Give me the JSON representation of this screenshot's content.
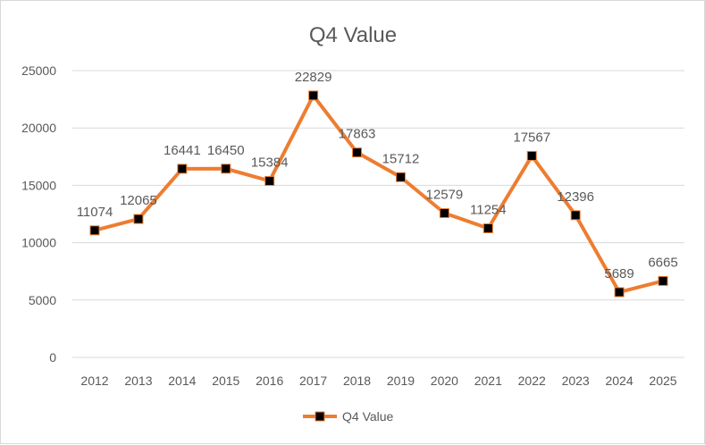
{
  "chart_data": {
    "type": "line",
    "title": "Q4 Value",
    "categories": [
      "2012",
      "2013",
      "2014",
      "2015",
      "2016",
      "2017",
      "2018",
      "2019",
      "2020",
      "2021",
      "2022",
      "2023",
      "2024",
      "2025"
    ],
    "series": [
      {
        "name": "Q4 Value",
        "values": [
          11074,
          12065,
          16441,
          16450,
          15384,
          22829,
          17863,
          15712,
          12579,
          11254,
          17567,
          12396,
          5689,
          6665
        ]
      }
    ],
    "ylim": [
      0,
      25000
    ],
    "yticks": [
      0,
      5000,
      10000,
      15000,
      20000,
      25000
    ],
    "grid": true,
    "legend": "bottom",
    "data_labels": true,
    "colors": {
      "line": "#ED7D31",
      "marker": "#000000",
      "grid": "#D9D9D9",
      "text": "#595959"
    }
  }
}
